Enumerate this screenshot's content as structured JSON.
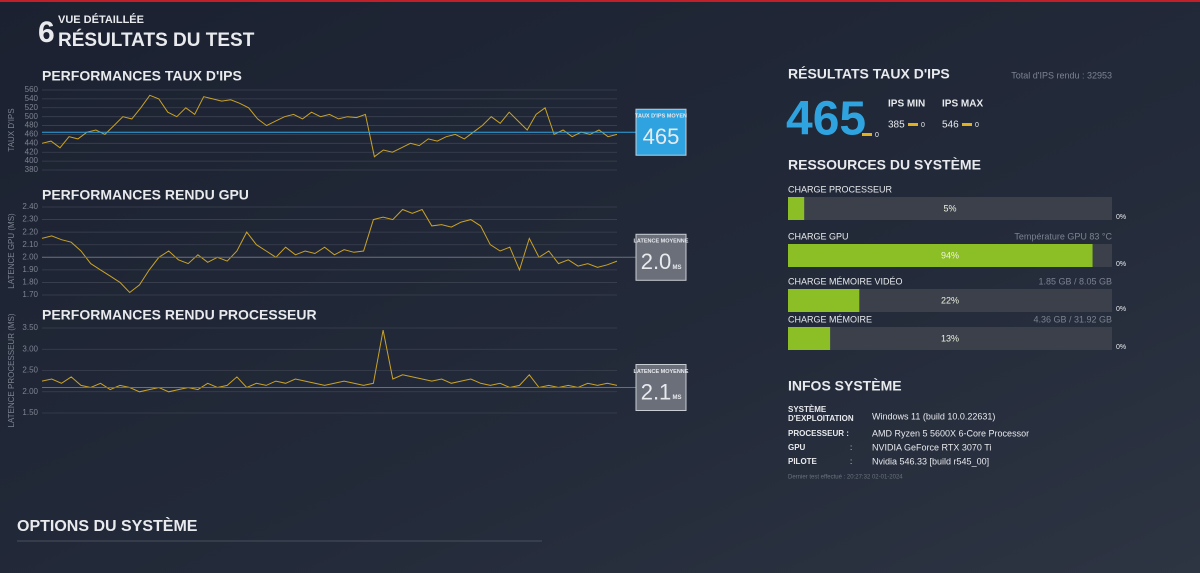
{
  "header": {
    "logo": "6",
    "subtitle": "VUE DÉTAILLÉE",
    "title": "RÉSULTATS DU TEST"
  },
  "chart_data": [
    {
      "type": "line",
      "title": "PERFORMANCES TAUX D'IPS",
      "y_label": "TAUX D'IPS",
      "color": "#c9a227",
      "ylim": [
        380,
        560
      ],
      "yticks": [
        380,
        400,
        420,
        440,
        460,
        480,
        500,
        520,
        540,
        560
      ],
      "grid": true,
      "values": [
        440,
        445,
        430,
        455,
        450,
        465,
        470,
        460,
        480,
        500,
        495,
        520,
        548,
        540,
        510,
        500,
        520,
        505,
        545,
        540,
        535,
        538,
        530,
        520,
        495,
        480,
        490,
        500,
        505,
        495,
        510,
        500,
        505,
        495,
        500,
        498,
        505,
        410,
        425,
        420,
        430,
        440,
        435,
        450,
        445,
        455,
        460,
        450,
        465,
        480,
        500,
        485,
        510,
        490,
        470,
        505,
        520,
        460,
        470,
        455,
        465,
        460,
        470,
        455,
        460
      ],
      "average": 465,
      "average_name": "TAUX D'IPS MOYEN",
      "average_color": "#2fa3e0"
    },
    {
      "type": "line",
      "title": "PERFORMANCES RENDU GPU",
      "y_label": "LATENCE GPU (MS)",
      "color": "#c9a227",
      "ylim": [
        1.7,
        2.4
      ],
      "yticks": [
        {
          "value": 1.7,
          "label": "1.70"
        },
        {
          "value": 1.8,
          "label": "1.80"
        },
        {
          "value": 1.9,
          "label": "1.90"
        },
        {
          "value": 2.0,
          "label": "2.00"
        },
        {
          "value": 2.1,
          "label": "2.10"
        },
        {
          "value": 2.2,
          "label": "2.20"
        },
        {
          "value": 2.3,
          "label": "2.30"
        },
        {
          "value": 2.4,
          "label": "2.40"
        }
      ],
      "grid": true,
      "values": [
        2.15,
        2.17,
        2.14,
        2.12,
        2.05,
        1.95,
        1.9,
        1.85,
        1.8,
        1.72,
        1.78,
        1.9,
        2.0,
        2.05,
        1.98,
        1.95,
        2.02,
        1.96,
        2.0,
        1.97,
        2.05,
        2.2,
        2.1,
        2.05,
        2.0,
        2.08,
        2.02,
        2.05,
        2.03,
        2.08,
        2.02,
        2.06,
        2.04,
        2.05,
        2.3,
        2.32,
        2.3,
        2.38,
        2.35,
        2.38,
        2.25,
        2.26,
        2.24,
        2.28,
        2.3,
        2.25,
        2.1,
        2.05,
        2.08,
        1.9,
        2.15,
        2.0,
        2.05,
        1.95,
        1.98,
        1.93,
        1.95,
        1.92,
        1.94,
        1.97
      ],
      "average": 2.0,
      "average_label": "2.0",
      "average_unit": "MS",
      "average_name": "LATENCE MOYENNE",
      "average_color": "#6a6f7a"
    },
    {
      "type": "line",
      "title": "PERFORMANCES RENDU PROCESSEUR",
      "y_label": "LATENCE PROCESSEUR (MS)",
      "color": "#c9a227",
      "ylim": [
        1.5,
        3.5
      ],
      "yticks": [
        {
          "value": 1.5,
          "label": "1.50"
        },
        {
          "value": 2.0,
          "label": "2.00"
        },
        {
          "value": 2.5,
          "label": "2.50"
        },
        {
          "value": 3.0,
          "label": "3.00"
        },
        {
          "value": 3.5,
          "label": "3.50"
        }
      ],
      "grid": true,
      "values": [
        2.25,
        2.3,
        2.2,
        2.35,
        2.15,
        2.1,
        2.2,
        2.05,
        2.15,
        2.1,
        2.0,
        2.05,
        2.1,
        2.0,
        2.05,
        2.1,
        2.05,
        2.2,
        2.1,
        2.15,
        2.35,
        2.1,
        2.2,
        2.15,
        2.25,
        2.2,
        2.3,
        2.25,
        2.2,
        2.15,
        2.2,
        2.25,
        2.2,
        2.15,
        2.2,
        3.45,
        2.3,
        2.4,
        2.35,
        2.3,
        2.25,
        2.3,
        2.2,
        2.25,
        2.3,
        2.2,
        2.15,
        2.2,
        2.1,
        2.15,
        2.4,
        2.1,
        2.15,
        2.1,
        2.15,
        2.1,
        2.2,
        2.15,
        2.2,
        2.15
      ],
      "average": 2.1,
      "average_label": "2.1",
      "average_unit": "MS",
      "average_name": "LATENCE MOYENNE",
      "average_color": "#6a6f7a"
    }
  ],
  "results": {
    "title": "RÉSULTATS TAUX D'IPS",
    "total": "Total d'IPS rendu : 32953",
    "average": 465,
    "average_delta": 0,
    "min_name": "IPS MIN",
    "min": 385,
    "min_delta": 0,
    "max_name": "IPS MAX",
    "max": 546,
    "max_delta": 0
  },
  "resources": {
    "title": "RESSOURCES DU SYSTÈME",
    "items": [
      {
        "name": "CHARGE PROCESSEUR",
        "value": 5,
        "value_label": "5%",
        "other": "0%"
      },
      {
        "name": "CHARGE GPU",
        "detail": "Température GPU 83 °C",
        "value": 94,
        "value_label": "94%",
        "other": "0%"
      },
      {
        "name": "CHARGE MÉMOIRE VIDÉO",
        "detail": "1.85 GB / 8.05 GB",
        "value": 22,
        "value_label": "22%",
        "other": "0%"
      },
      {
        "name": "CHARGE MÉMOIRE",
        "detail": "4.36 GB / 31.92 GB",
        "value": 13,
        "value_label": "13%",
        "other": "0%"
      }
    ]
  },
  "system_info": {
    "title": "INFOS SYSTÈME",
    "rows": [
      {
        "label": "SYSTÈME\nD'EXPLOITATION",
        "value": "Windows 11 (build 10.0.22631)"
      },
      {
        "label": "PROCESSEUR :",
        "value": "AMD Ryzen 5 5600X 6-Core Processor"
      },
      {
        "label": "GPU",
        "sep": ":",
        "value": "NVIDIA GeForce RTX 3070 Ti"
      },
      {
        "label": "PILOTE",
        "sep": ":",
        "value": "Nvidia 546.33 [build r545_00]"
      }
    ],
    "footer": "Dernier test effectué : 20:27:32 02-01-2024"
  },
  "options": {
    "title": "OPTIONS DU SYSTÈME"
  }
}
